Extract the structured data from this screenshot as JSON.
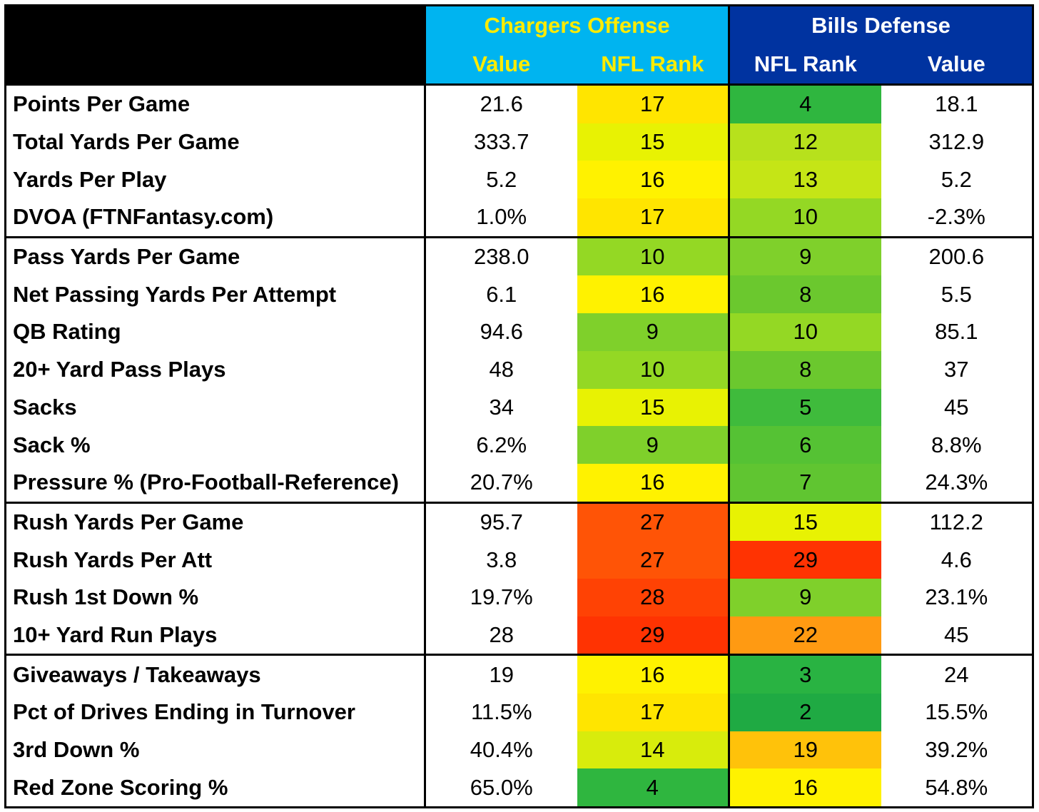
{
  "chart_data": {
    "type": "table",
    "groups": [
      {
        "name": "Chargers Offense",
        "columns": [
          "Value",
          "NFL Rank"
        ],
        "header_bg": "#00b4f0",
        "header_color": "#ffeb00"
      },
      {
        "name": "Bills Defense",
        "columns": [
          "NFL Rank",
          "Value"
        ],
        "header_bg": "#0033a0",
        "header_color": "#ffffff"
      }
    ],
    "sections": [
      {
        "rows": [
          {
            "stat": "Points Per Game",
            "chg_value": "21.6",
            "chg_rank": 17,
            "bills_rank": 4,
            "bills_value": "18.1"
          },
          {
            "stat": "Total Yards Per Game",
            "chg_value": "333.7",
            "chg_rank": 15,
            "bills_rank": 12,
            "bills_value": "312.9"
          },
          {
            "stat": "Yards Per Play",
            "chg_value": "5.2",
            "chg_rank": 16,
            "bills_rank": 13,
            "bills_value": "5.2"
          },
          {
            "stat": "DVOA (FTNFantasy.com)",
            "chg_value": "1.0%",
            "chg_rank": 17,
            "bills_rank": 10,
            "bills_value": "-2.3%"
          }
        ]
      },
      {
        "rows": [
          {
            "stat": "Pass Yards Per Game",
            "chg_value": "238.0",
            "chg_rank": 10,
            "bills_rank": 9,
            "bills_value": "200.6"
          },
          {
            "stat": "Net Passing Yards Per Attempt",
            "chg_value": "6.1",
            "chg_rank": 16,
            "bills_rank": 8,
            "bills_value": "5.5"
          },
          {
            "stat": "QB Rating",
            "chg_value": "94.6",
            "chg_rank": 9,
            "bills_rank": 10,
            "bills_value": "85.1"
          },
          {
            "stat": "20+ Yard Pass Plays",
            "chg_value": "48",
            "chg_rank": 10,
            "bills_rank": 8,
            "bills_value": "37"
          },
          {
            "stat": "Sacks",
            "chg_value": "34",
            "chg_rank": 15,
            "bills_rank": 5,
            "bills_value": "45"
          },
          {
            "stat": "Sack %",
            "chg_value": "6.2%",
            "chg_rank": 9,
            "bills_rank": 6,
            "bills_value": "8.8%"
          },
          {
            "stat": "Pressure % (Pro-Football-Reference)",
            "chg_value": "20.7%",
            "chg_rank": 16,
            "bills_rank": 7,
            "bills_value": "24.3%"
          }
        ]
      },
      {
        "rows": [
          {
            "stat": "Rush Yards Per Game",
            "chg_value": "95.7",
            "chg_rank": 27,
            "bills_rank": 15,
            "bills_value": "112.2"
          },
          {
            "stat": "Rush Yards Per Att",
            "chg_value": "3.8",
            "chg_rank": 27,
            "bills_rank": 29,
            "bills_value": "4.6"
          },
          {
            "stat": "Rush 1st Down %",
            "chg_value": "19.7%",
            "chg_rank": 28,
            "bills_rank": 9,
            "bills_value": "23.1%"
          },
          {
            "stat": "10+ Yard Run Plays",
            "chg_value": "28",
            "chg_rank": 29,
            "bills_rank": 22,
            "bills_value": "45"
          }
        ]
      },
      {
        "rows": [
          {
            "stat": "Giveaways / Takeaways",
            "chg_value": "19",
            "chg_rank": 16,
            "bills_rank": 3,
            "bills_value": "24"
          },
          {
            "stat": "Pct of Drives Ending in Turnover",
            "chg_value": "11.5%",
            "chg_rank": 17,
            "bills_rank": 2,
            "bills_value": "15.5%"
          },
          {
            "stat": "3rd Down %",
            "chg_value": "40.4%",
            "chg_rank": 14,
            "bills_rank": 19,
            "bills_value": "39.2%"
          },
          {
            "stat": "Red Zone Scoring %",
            "chg_value": "65.0%",
            "chg_rank": 4,
            "bills_rank": 16,
            "bills_value": "54.8%"
          }
        ]
      }
    ]
  },
  "rank_colors": {
    "2": "#1faa43",
    "3": "#29b342",
    "4": "#2fb63f",
    "5": "#3fbb3c",
    "6": "#55c234",
    "7": "#60c531",
    "8": "#6bc82e",
    "9": "#7fd02b",
    "10": "#94d824",
    "12": "#b7e11c",
    "13": "#c5e516",
    "14": "#d8ec0c",
    "15": "#e8f203",
    "16": "#fff200",
    "17": "#ffe500",
    "19": "#ffc20a",
    "22": "#ff9a12",
    "27": "#ff5406",
    "28": "#ff4204",
    "29": "#ff3302"
  }
}
